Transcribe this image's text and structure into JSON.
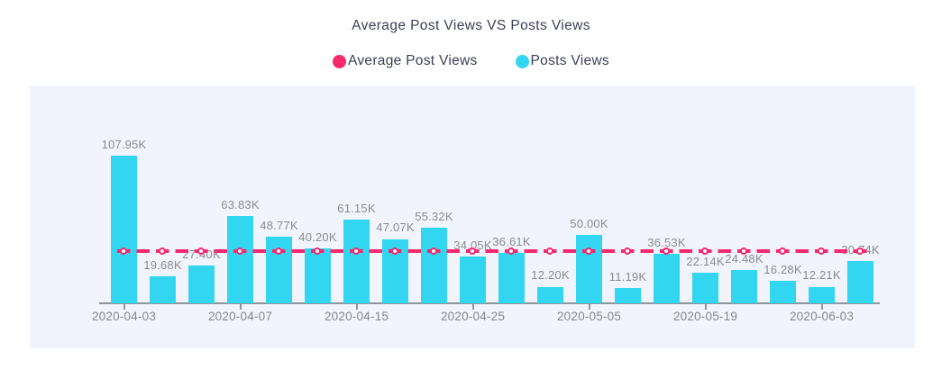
{
  "title": "Average Post Views VS Posts Views",
  "legend": [
    {
      "label": "Average Post Views",
      "color": "#f8286d"
    },
    {
      "label": "Posts Views",
      "color": "#33d6f0"
    }
  ],
  "colors": {
    "bar": "#33d6f0",
    "average_line": "#f8286d",
    "panel_background": "#f1f4fc",
    "title_text": "#3b4057",
    "value_label_text": "#8b8b8b",
    "axis_label_text": "#848789"
  },
  "chart_data": {
    "type": "bar",
    "title": "Average Post Views VS Posts Views",
    "xlabel": "",
    "ylabel": "",
    "grid": false,
    "legend_position": "top",
    "ylim_k": [
      0,
      115
    ],
    "x_tick_labels": [
      "2020-04-03",
      "2020-04-07",
      "2020-04-15",
      "2020-04-25",
      "2020-05-05",
      "2020-05-19",
      "2020-06-03"
    ],
    "x_tick_bar_indices": [
      0,
      3,
      6,
      9,
      12,
      15,
      18
    ],
    "series": [
      {
        "name": "Posts Views",
        "type": "bar",
        "color": "#33d6f0",
        "values_k": [
          107.95,
          19.68,
          27.4,
          63.83,
          48.77,
          40.2,
          61.15,
          47.07,
          55.32,
          34.05,
          36.61,
          12.2,
          50.0,
          11.19,
          36.53,
          22.14,
          24.48,
          16.28,
          12.21,
          30.74
        ],
        "data_labels": [
          "107.95K",
          "19.68K",
          "27.40K",
          "63.83K",
          "48.77K",
          "40.20K",
          "61.15K",
          "47.07K",
          "55.32K",
          "34.05K",
          "36.61K",
          "12.20K",
          "50.00K",
          "11.19K",
          "36.53K",
          "22.14K",
          "24.48K",
          "16.28K",
          "12.21K",
          "30.74K"
        ]
      },
      {
        "name": "Average Post Views",
        "type": "line",
        "line_style": "dashed",
        "marker": "empty-circle",
        "color": "#f8286d",
        "constant_value_k_est": 37.9
      }
    ]
  }
}
